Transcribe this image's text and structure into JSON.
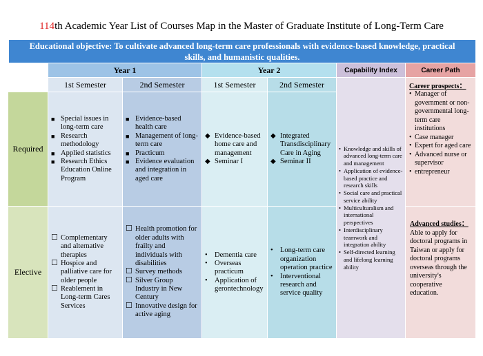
{
  "title": {
    "number": "114",
    "text": "th Academic Year List of Courses Map in the Master of Graduate Institute of Long-Term Care"
  },
  "objective": "Educational objective: To cultivate advanced long-term care professionals with evidence-based knowledge, practical skills, and humanistic qualities.",
  "headers": {
    "year1": "Year 1",
    "year2": "Year 2",
    "capability": "Capability Index",
    "career": "Career Path"
  },
  "semesters": [
    "1st Semester",
    "2nd Semester",
    "1st Semester",
    "2nd Semester"
  ],
  "rows": [
    {
      "label": "Required",
      "cells": [
        [
          "Special issues in long-term care",
          "Research methodology",
          "Applied statistics",
          "Research Ethics Education Online Program"
        ],
        [
          "Evidence-based health care",
          "Management of long-term care",
          "Practicum",
          "Evidence evaluation and integration in aged care"
        ],
        [
          "Evidence-based home care and management",
          "Seminar I"
        ],
        [
          "Integrated Transdisciplinary Care in Aging",
          "Seminar II"
        ]
      ]
    },
    {
      "label": "Elective",
      "cells": [
        [
          "Complementary and alternative therapies",
          "Hospice and palliative care for older people",
          "Reablement in Long-term Cares Services"
        ],
        [
          "Health promotion for older adults with frailty and individuals with disabilities",
          "Survey methods",
          "Silver Group Industry in New Century",
          "Innovative design for active aging"
        ],
        [
          "Dementia care",
          "Overseas practicum",
          "Application of gerontechnology"
        ],
        [
          "Long-term care organization operation practice",
          "Interventional research and service quality"
        ]
      ]
    }
  ],
  "capability": [
    "Knowledge and skills of advanced long-term care and management",
    "Application of evidence-based practice and research skills",
    "Social care and practical service ability",
    "Multiculturalism and international perspectives",
    "Interdisciplinary teamwork and integration ability",
    "Self-directed learning and lifelong learning ability"
  ],
  "career": {
    "prospects_heading": "Career prospects：",
    "prospects": [
      "Manager of government or non-governmental long-term care institutions",
      "Case manager",
      "Expert for aged care",
      "Advanced nurse or supervisor",
      "entrepreneur"
    ],
    "advanced_heading": "Advanced studies：",
    "advanced_text": "Able to apply for doctoral programs in Taiwan or apply for doctoral programs overseas through the university's cooperative education."
  }
}
